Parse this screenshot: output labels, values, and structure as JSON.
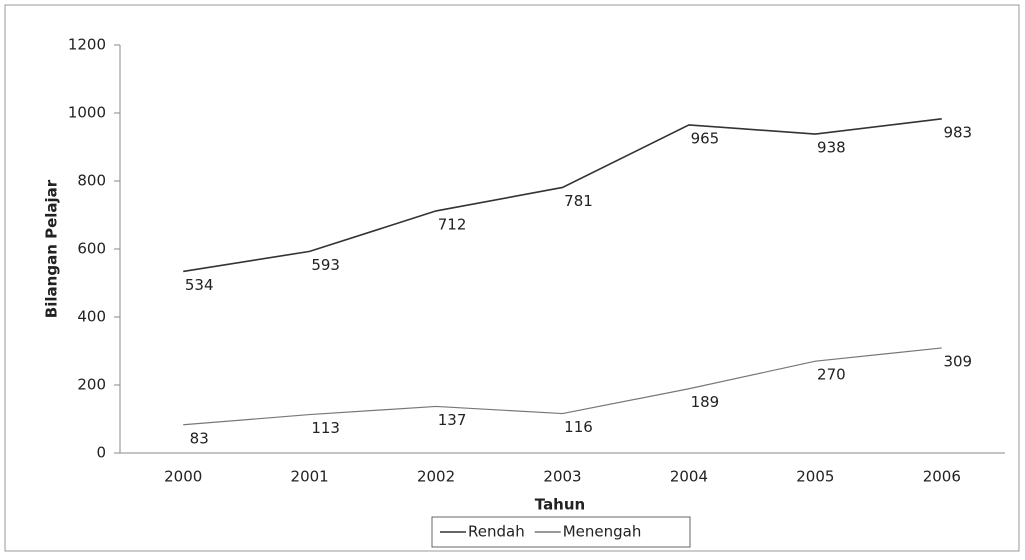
{
  "chart_data": {
    "type": "line",
    "x_label": "Tahun",
    "y_label": "Bilangan Pelajar",
    "categories": [
      "2000",
      "2001",
      "2002",
      "2003",
      "2004",
      "2005",
      "2006"
    ],
    "series": [
      {
        "name": "Rendah",
        "color": "#333333",
        "values": [
          534,
          593,
          712,
          781,
          965,
          938,
          983
        ]
      },
      {
        "name": "Menengah",
        "color": "#777777",
        "values": [
          83,
          113,
          137,
          116,
          189,
          270,
          309
        ]
      }
    ],
    "ylim": [
      0,
      1200
    ],
    "yticks": [
      0,
      200,
      400,
      600,
      800,
      1000,
      1200
    ],
    "grid": false,
    "legend": "bottom"
  }
}
